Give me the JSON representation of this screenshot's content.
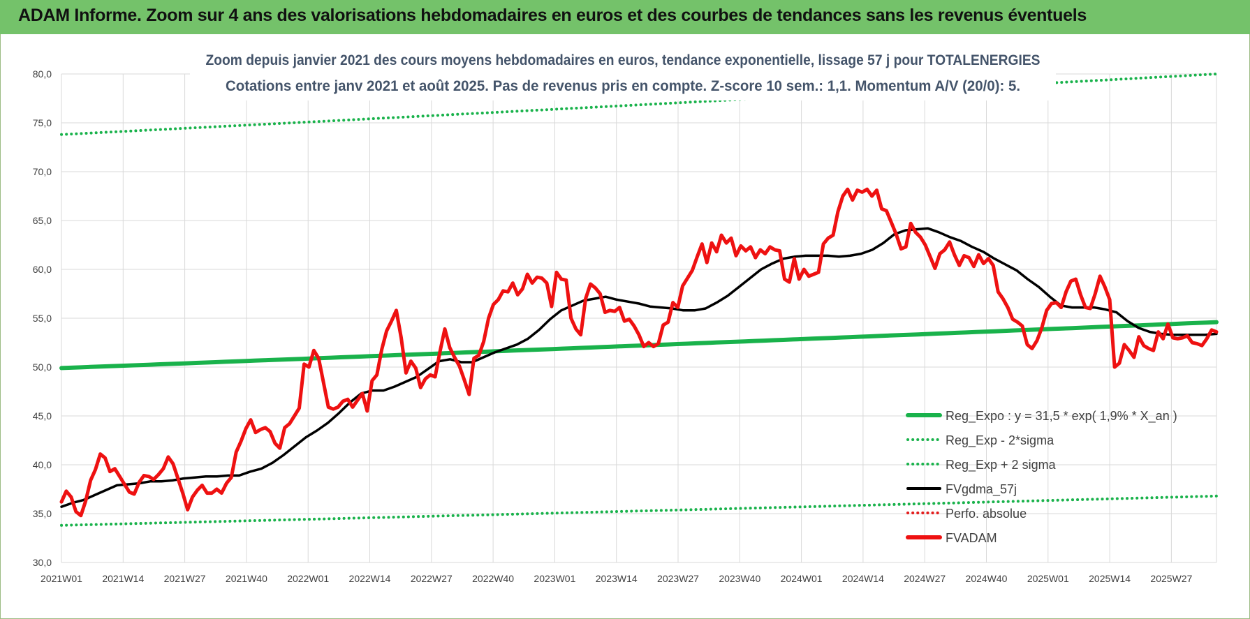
{
  "header": {
    "title": "ADAM Informe. Zoom sur 4 ans des valorisations hebdomadaires en euros et des courbes de tendances sans les revenus éventuels"
  },
  "chart_data": {
    "type": "line",
    "title_lines": [
      "Zoom depuis janvier 2021 des cours moyens hebdomadaires en euros, tendance exponentielle, lissage 57 j pour TOTALENERGIES",
      "Cotations entre janv 2021 et août 2025. Pas de revenus pris en compte. Z-score 10 sem.: 1,1. Momentum A/V (20/0): 5."
    ],
    "xlabel": "",
    "ylabel": "",
    "ylim": [
      30,
      80
    ],
    "y_ticks": [
      "80,0",
      "75,0",
      "70,0",
      "65,0",
      "60,0",
      "55,0",
      "50,0",
      "45,0",
      "40,0",
      "35,0",
      "30,0"
    ],
    "x_ticks": [
      "2021W01",
      "2021W14",
      "2021W27",
      "2021W40",
      "2022W01",
      "2022W14",
      "2022W27",
      "2022W40",
      "2023W01",
      "2023W14",
      "2023W27",
      "2023W40",
      "2024W01",
      "2024W14",
      "2024W27",
      "2024W40",
      "2025W01",
      "2025W14",
      "2025W27"
    ],
    "grid": true,
    "legend_position": "bottom-right",
    "series": [
      {
        "name": "Reg_Expo : y = 31,5 * exp( 1,9% *  X_an )",
        "color": "#19b24b",
        "style": "solid",
        "start": 49.9,
        "end": 54.6
      },
      {
        "name": "Reg_Exp - 2*sigma",
        "color": "#19b24b",
        "style": "dotted",
        "start": 33.8,
        "end": 36.8
      },
      {
        "name": "Reg_Exp + 2 sigma",
        "color": "#19b24b",
        "style": "dotted",
        "start": 73.8,
        "end": 80.0
      },
      {
        "name": "FVgdma_57j",
        "color": "#000000",
        "style": "solid",
        "values": [
          35.7,
          36.1,
          36.4,
          36.9,
          37.4,
          37.9,
          38.0,
          38.1,
          38.3,
          38.3,
          38.4,
          38.6,
          38.7,
          38.8,
          38.8,
          38.9,
          38.9,
          39.3,
          39.6,
          40.2,
          41.0,
          41.9,
          42.8,
          43.5,
          44.3,
          45.3,
          46.4,
          47.3,
          47.6,
          47.6,
          48.0,
          48.5,
          49.0,
          49.8,
          50.6,
          50.8,
          50.5,
          50.5,
          51.0,
          51.5,
          51.9,
          52.3,
          52.9,
          53.8,
          54.9,
          55.8,
          56.3,
          56.8,
          57.0,
          57.2,
          56.9,
          56.7,
          56.5,
          56.2,
          56.1,
          56.0,
          55.8,
          55.8,
          56.0,
          56.6,
          57.3,
          58.2,
          59.1,
          60.0,
          60.6,
          61.1,
          61.3,
          61.4,
          61.4,
          61.4,
          61.3,
          61.4,
          61.6,
          62.0,
          62.7,
          63.6,
          64.0,
          64.1,
          64.2,
          63.8,
          63.3,
          62.9,
          62.3,
          61.8,
          61.1,
          60.5,
          59.9,
          59.0,
          58.2,
          57.2,
          56.3,
          56.1,
          56.1,
          56.1,
          55.9,
          55.6,
          54.7,
          54.0,
          53.6,
          53.4,
          53.3,
          53.3,
          53.3,
          53.3,
          53.4
        ]
      },
      {
        "name": "Perfo. absolue",
        "color": "#e31b1b",
        "style": "dotted",
        "values": []
      },
      {
        "name": "FVADAM",
        "color": "#ee1111",
        "style": "solid",
        "values": [
          36.2,
          37.3,
          36.7,
          35.2,
          34.8,
          36.3,
          38.4,
          39.5,
          41.1,
          40.7,
          39.3,
          39.6,
          38.8,
          38.0,
          37.2,
          37.0,
          38.2,
          38.9,
          38.8,
          38.5,
          39.0,
          39.6,
          40.8,
          40.1,
          38.6,
          37.1,
          35.4,
          36.7,
          37.4,
          37.9,
          37.1,
          37.1,
          37.5,
          37.1,
          38.1,
          38.7,
          41.3,
          42.4,
          43.7,
          44.6,
          43.3,
          43.6,
          43.8,
          43.4,
          42.2,
          41.7,
          43.8,
          44.2,
          45.0,
          45.8,
          50.3,
          50.0,
          51.7,
          50.9,
          48.4,
          45.9,
          45.7,
          45.9,
          46.5,
          46.7,
          45.9,
          46.6,
          47.3,
          45.5,
          48.6,
          49.2,
          51.8,
          53.7,
          54.7,
          55.8,
          53.0,
          49.4,
          50.6,
          49.9,
          47.9,
          48.8,
          49.2,
          49.0,
          51.6,
          53.9,
          52.0,
          51.0,
          50.1,
          48.7,
          47.2,
          50.9,
          51.2,
          52.6,
          55.0,
          56.4,
          56.9,
          57.8,
          57.7,
          58.6,
          57.4,
          58.0,
          59.5,
          58.6,
          59.2,
          59.1,
          58.6,
          56.2,
          59.7,
          59.0,
          58.9,
          55.0,
          53.9,
          53.3,
          57.0,
          58.5,
          58.1,
          57.5,
          55.6,
          55.8,
          55.7,
          56.1,
          54.7,
          54.9,
          54.2,
          53.3,
          52.1,
          52.5,
          52.1,
          52.4,
          54.3,
          54.6,
          56.6,
          56.1,
          58.3,
          59.1,
          59.9,
          61.3,
          62.6,
          60.7,
          62.7,
          61.8,
          63.5,
          62.7,
          63.2,
          61.4,
          62.4,
          61.9,
          62.3,
          61.2,
          62.0,
          61.6,
          62.3,
          62.0,
          61.9,
          59.0,
          58.7,
          61.1,
          59.0,
          60.0,
          59.3,
          59.5,
          59.7,
          62.6,
          63.2,
          63.5,
          65.9,
          67.5,
          68.2,
          67.1,
          68.1,
          67.9,
          68.2,
          67.5,
          68.1,
          66.2,
          66.0,
          64.8,
          63.6,
          62.1,
          62.3,
          64.7,
          63.8,
          63.3,
          62.5,
          61.3,
          60.1,
          61.6,
          62.0,
          62.8,
          61.5,
          60.4,
          61.4,
          61.2,
          60.3,
          61.5,
          60.6,
          61.1,
          60.4,
          57.7,
          57.0,
          56.1,
          54.9,
          54.6,
          54.2,
          52.3,
          51.9,
          52.7,
          54.0,
          55.8,
          56.5,
          56.6,
          56.1,
          57.7,
          58.8,
          59.0,
          57.4,
          56.1,
          56.0,
          57.5,
          59.3,
          58.2,
          56.9,
          50.0,
          50.4,
          52.3,
          51.7,
          51.0,
          53.1,
          52.2,
          51.9,
          51.7,
          53.6,
          52.9,
          54.4,
          53.0,
          52.9,
          53.0,
          53.2,
          52.5,
          52.4,
          52.2,
          52.9,
          53.8,
          53.6
        ]
      }
    ]
  }
}
